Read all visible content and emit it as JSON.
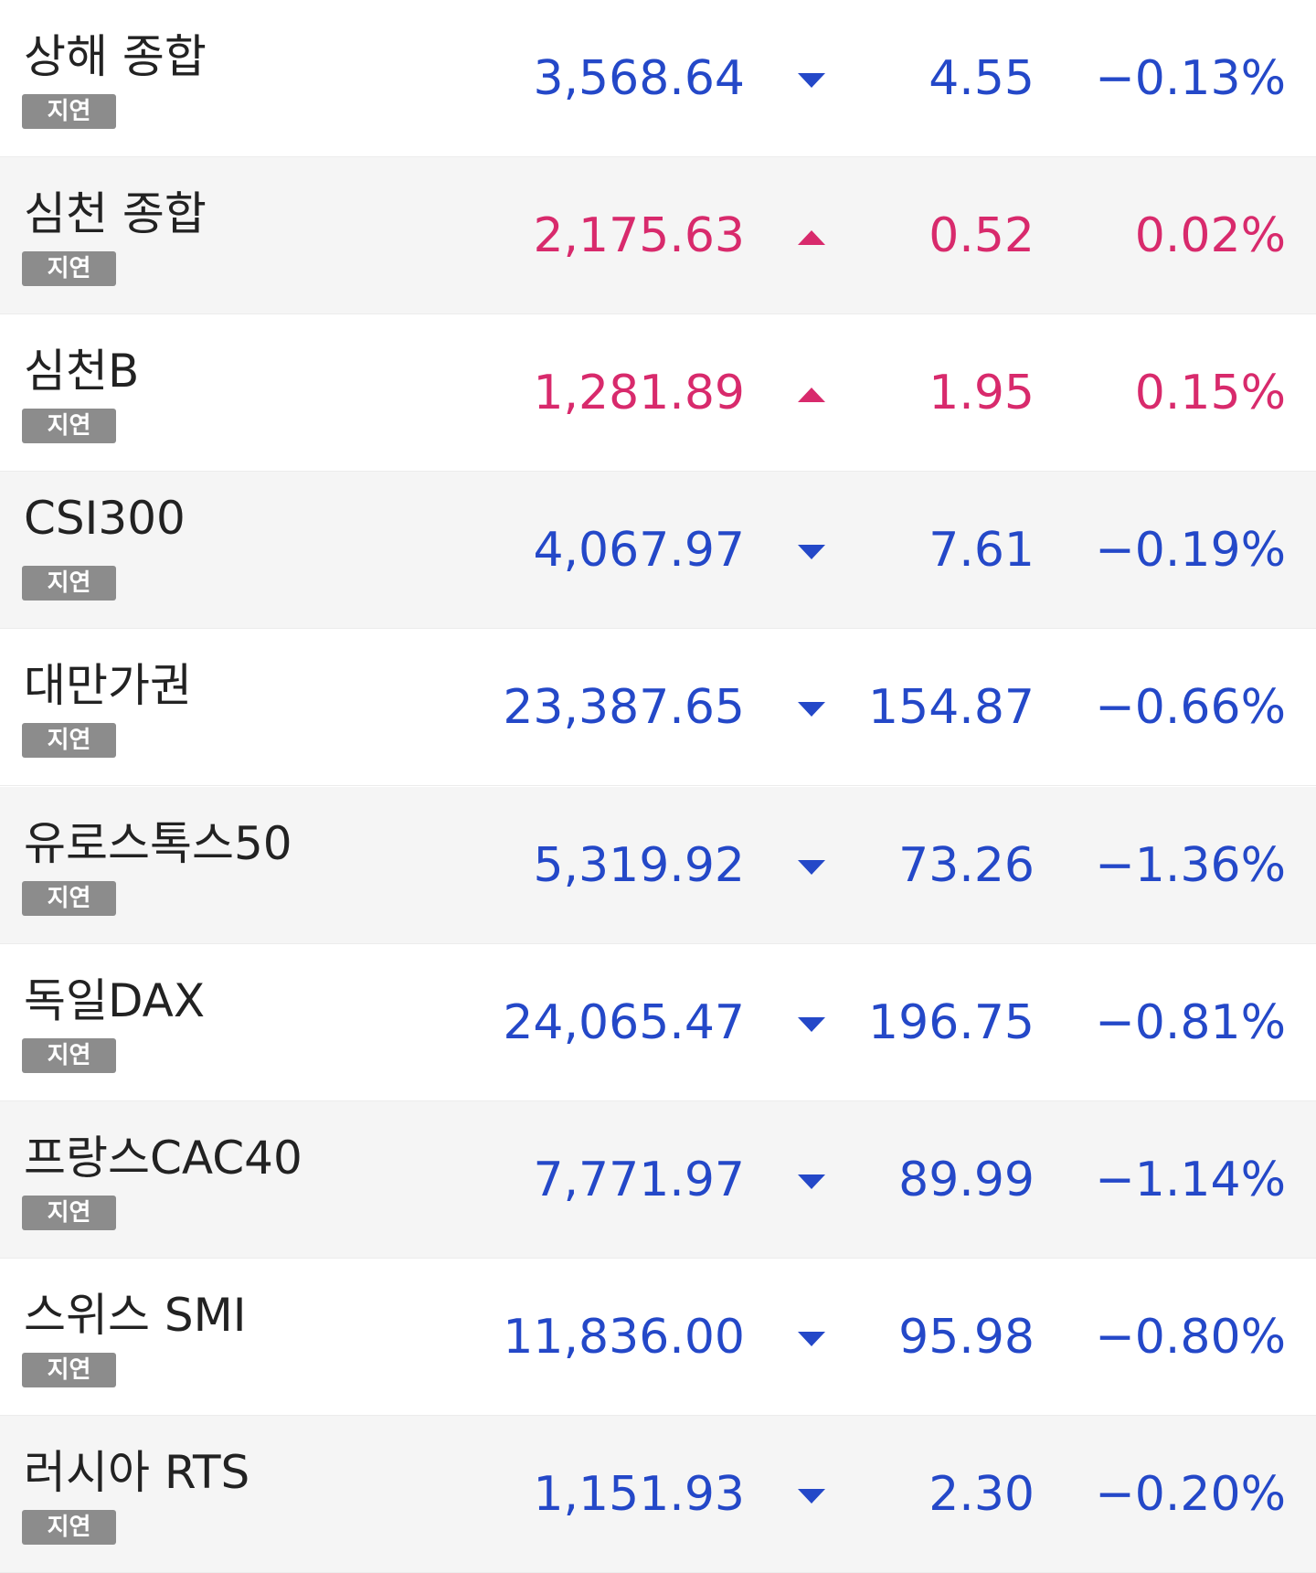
{
  "rows": [
    {
      "name": "상해 종합",
      "badge": "지연",
      "value": "3,568.64",
      "direction": "down",
      "change": "4.55",
      "percent": "−0.13%"
    },
    {
      "name": "심천 종합",
      "badge": "지연",
      "value": "2,175.63",
      "direction": "up",
      "change": "0.52",
      "percent": "0.02%"
    },
    {
      "name": "심천B",
      "badge": "지연",
      "value": "1,281.89",
      "direction": "up",
      "change": "1.95",
      "percent": "0.15%"
    },
    {
      "name": "CSI300",
      "badge": "지연",
      "value": "4,067.97",
      "direction": "down",
      "change": "7.61",
      "percent": "−0.19%"
    },
    {
      "name": "대만가권",
      "badge": "지연",
      "value": "23,387.65",
      "direction": "down",
      "change": "154.87",
      "percent": "−0.66%"
    },
    {
      "name": "유로스톡스50",
      "badge": "지연",
      "value": "5,319.92",
      "direction": "down",
      "change": "73.26",
      "percent": "−1.36%"
    },
    {
      "name": "독일DAX",
      "badge": "지연",
      "value": "24,065.47",
      "direction": "down",
      "change": "196.75",
      "percent": "−0.81%"
    },
    {
      "name": "프랑스CAC40",
      "badge": "지연",
      "value": "7,771.97",
      "direction": "down",
      "change": "89.99",
      "percent": "−1.14%"
    },
    {
      "name": "스위스 SMI",
      "badge": "지연",
      "value": "11,836.00",
      "direction": "down",
      "change": "95.98",
      "percent": "−0.80%"
    },
    {
      "name": "러시아 RTS",
      "badge": "지연",
      "value": "1,151.93",
      "direction": "down",
      "change": "2.30",
      "percent": "−0.20%"
    }
  ],
  "colors": {
    "up": "#d82a6c",
    "down": "#2448c8"
  }
}
